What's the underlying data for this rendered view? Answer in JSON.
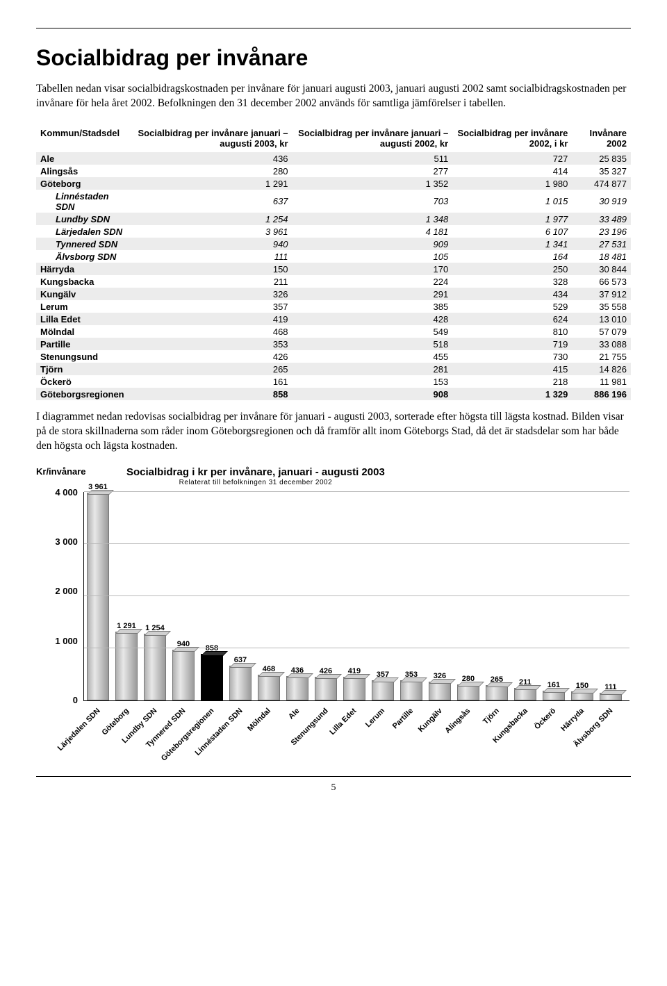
{
  "title": "Socialbidrag per invånare",
  "intro": "Tabellen nedan visar socialbidragskostnaden per invånare för januari augusti 2003, januari augusti 2002 samt socialbidragskostnaden per invånare för hela året 2002. Befolkningen den 31 december 2002 används för samtliga jämförelser i tabellen.",
  "table": {
    "columns": [
      "Kommun/Stadsdel",
      "Socialbidrag per invånare januari – augusti 2003, kr",
      "Socialbidrag per invånare januari – augusti 2002, kr",
      "Socialbidrag per invånare 2002, i kr",
      "Invånare 2002"
    ],
    "rows": [
      {
        "name": "Ale",
        "c1": "436",
        "c2": "511",
        "c3": "727",
        "c4": "25 835",
        "shade": true
      },
      {
        "name": "Alingsås",
        "c1": "280",
        "c2": "277",
        "c3": "414",
        "c4": "35 327"
      },
      {
        "name": "Göteborg",
        "c1": "1 291",
        "c2": "1 352",
        "c3": "1 980",
        "c4": "474 877",
        "shade": true
      },
      {
        "name": "Linnéstaden SDN",
        "c1": "637",
        "c2": "703",
        "c3": "1 015",
        "c4": "30 919",
        "sub": true
      },
      {
        "name": "Lundby SDN",
        "c1": "1 254",
        "c2": "1 348",
        "c3": "1 977",
        "c4": "33 489",
        "sub": true,
        "shade": true
      },
      {
        "name": "Lärjedalen SDN",
        "c1": "3 961",
        "c2": "4 181",
        "c3": "6 107",
        "c4": "23 196",
        "sub": true
      },
      {
        "name": "Tynnered SDN",
        "c1": "940",
        "c2": "909",
        "c3": "1 341",
        "c4": "27 531",
        "sub": true,
        "shade": true
      },
      {
        "name": "Älvsborg SDN",
        "c1": "111",
        "c2": "105",
        "c3": "164",
        "c4": "18 481",
        "sub": true
      },
      {
        "name": "Härryda",
        "c1": "150",
        "c2": "170",
        "c3": "250",
        "c4": "30 844",
        "shade": true
      },
      {
        "name": "Kungsbacka",
        "c1": "211",
        "c2": "224",
        "c3": "328",
        "c4": "66 573"
      },
      {
        "name": "Kungälv",
        "c1": "326",
        "c2": "291",
        "c3": "434",
        "c4": "37 912",
        "shade": true
      },
      {
        "name": "Lerum",
        "c1": "357",
        "c2": "385",
        "c3": "529",
        "c4": "35 558"
      },
      {
        "name": "Lilla Edet",
        "c1": "419",
        "c2": "428",
        "c3": "624",
        "c4": "13 010",
        "shade": true
      },
      {
        "name": "Mölndal",
        "c1": "468",
        "c2": "549",
        "c3": "810",
        "c4": "57 079"
      },
      {
        "name": "Partille",
        "c1": "353",
        "c2": "518",
        "c3": "719",
        "c4": "33 088",
        "shade": true
      },
      {
        "name": "Stenungsund",
        "c1": "426",
        "c2": "455",
        "c3": "730",
        "c4": "21 755"
      },
      {
        "name": "Tjörn",
        "c1": "265",
        "c2": "281",
        "c3": "415",
        "c4": "14 826",
        "shade": true
      },
      {
        "name": "Öckerö",
        "c1": "161",
        "c2": "153",
        "c3": "218",
        "c4": "11 981"
      },
      {
        "name": "Göteborgsregionen",
        "c1": "858",
        "c2": "908",
        "c3": "1 329",
        "c4": "886 196",
        "shade": true,
        "total": true
      }
    ]
  },
  "mid_text": "I diagrammet nedan redovisas socialbidrag per invånare för januari - augusti 2003, sorterade efter högsta till lägsta kostnad. Bilden visar på de stora skillnaderna som råder inom Göteborgsregionen och då framför allt inom Göteborgs Stad, då det är stadsdelar som har både den högsta och lägsta kostnaden.",
  "chart": {
    "type": "bar",
    "y_unit": "Kr/invånare",
    "title": "Socialbidrag i kr per invånare, januari - augusti 2003",
    "subtitle": "Relaterat till befolkningen 31 december 2002",
    "ymax": 4000,
    "yticks": [
      "4 000",
      "3 000",
      "2 000",
      "1 000",
      "0"
    ],
    "ytick_values": [
      4000,
      3000,
      2000,
      1000,
      0
    ],
    "background_color": "#ffffff",
    "grid_color": "#b8b8b8",
    "bar_color_light": "#c0c0c0",
    "bar_color_dark": "#000000",
    "label_fontsize": 11,
    "title_fontsize": 15,
    "axis_fontsize": 13,
    "bars": [
      {
        "label": "Lärjedalen SDN",
        "value": 3961,
        "disp": "3 961"
      },
      {
        "label": "Göteborg",
        "value": 1291,
        "disp": "1 291"
      },
      {
        "label": "Lundby SDN",
        "value": 1254,
        "disp": "1 254"
      },
      {
        "label": "Tynnered SDN",
        "value": 940,
        "disp": "940"
      },
      {
        "label": "Göteborgsregionen",
        "value": 858,
        "disp": "858",
        "dark": true
      },
      {
        "label": "Linnéstaden SDN",
        "value": 637,
        "disp": "637"
      },
      {
        "label": "Mölndal",
        "value": 468,
        "disp": "468"
      },
      {
        "label": "Ale",
        "value": 436,
        "disp": "436"
      },
      {
        "label": "Stenungsund",
        "value": 426,
        "disp": "426"
      },
      {
        "label": "Lilla Edet",
        "value": 419,
        "disp": "419"
      },
      {
        "label": "Lerum",
        "value": 357,
        "disp": "357"
      },
      {
        "label": "Partille",
        "value": 353,
        "disp": "353"
      },
      {
        "label": "Kungälv",
        "value": 326,
        "disp": "326"
      },
      {
        "label": "Alingsås",
        "value": 280,
        "disp": "280"
      },
      {
        "label": "Tjörn",
        "value": 265,
        "disp": "265"
      },
      {
        "label": "Kungsbacka",
        "value": 211,
        "disp": "211"
      },
      {
        "label": "Öckerö",
        "value": 161,
        "disp": "161"
      },
      {
        "label": "Härryda",
        "value": 150,
        "disp": "150"
      },
      {
        "label": "Älvsborg SDN",
        "value": 111,
        "disp": "111"
      }
    ]
  },
  "page_number": "5"
}
